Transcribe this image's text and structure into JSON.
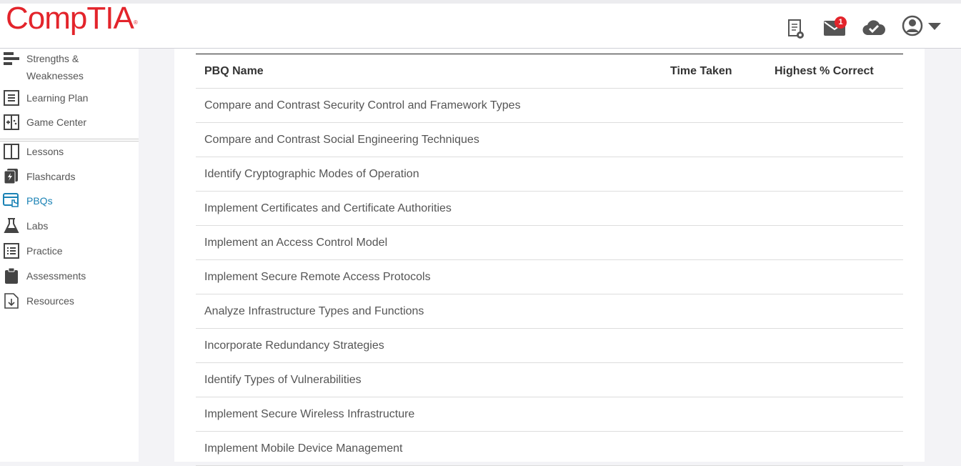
{
  "header": {
    "logo": "CompTIA",
    "mail_badge": "1",
    "icons": [
      "certificate-icon",
      "mail-icon",
      "cloud-check-icon",
      "user-icon",
      "caret-down-icon"
    ]
  },
  "sidebar": {
    "items": [
      {
        "label": "Strengths &",
        "label2": "Weaknesses",
        "icon": "strengths-icon"
      },
      {
        "label": "Learning Plan",
        "icon": "learning-plan-icon"
      },
      {
        "label": "Game Center",
        "icon": "game-center-icon"
      },
      {
        "label": "Lessons",
        "icon": "lessons-icon"
      },
      {
        "label": "Flashcards",
        "icon": "flashcards-icon"
      },
      {
        "label": "PBQs",
        "icon": "pbqs-icon",
        "active": true
      },
      {
        "label": "Labs",
        "icon": "labs-icon"
      },
      {
        "label": "Practice",
        "icon": "practice-icon"
      },
      {
        "label": "Assessments",
        "icon": "assessments-icon"
      },
      {
        "label": "Resources",
        "icon": "resources-icon"
      }
    ],
    "active_color": "#1a82b5"
  },
  "table": {
    "columns": [
      "PBQ Name",
      "Time Taken",
      "Highest % Correct"
    ],
    "rows": [
      "Compare and Contrast Security Control and Framework Types",
      "Compare and Contrast Social Engineering Techniques",
      "Identify Cryptographic Modes of Operation",
      "Implement Certificates and Certificate Authorities",
      "Implement an Access Control Model",
      "Implement Secure Remote Access Protocols",
      "Analyze Infrastructure Types and Functions",
      "Incorporate Redundancy Strategies",
      "Identify Types of Vulnerabilities",
      "Implement Secure Wireless Infrastructure",
      "Implement Mobile Device Management"
    ]
  }
}
